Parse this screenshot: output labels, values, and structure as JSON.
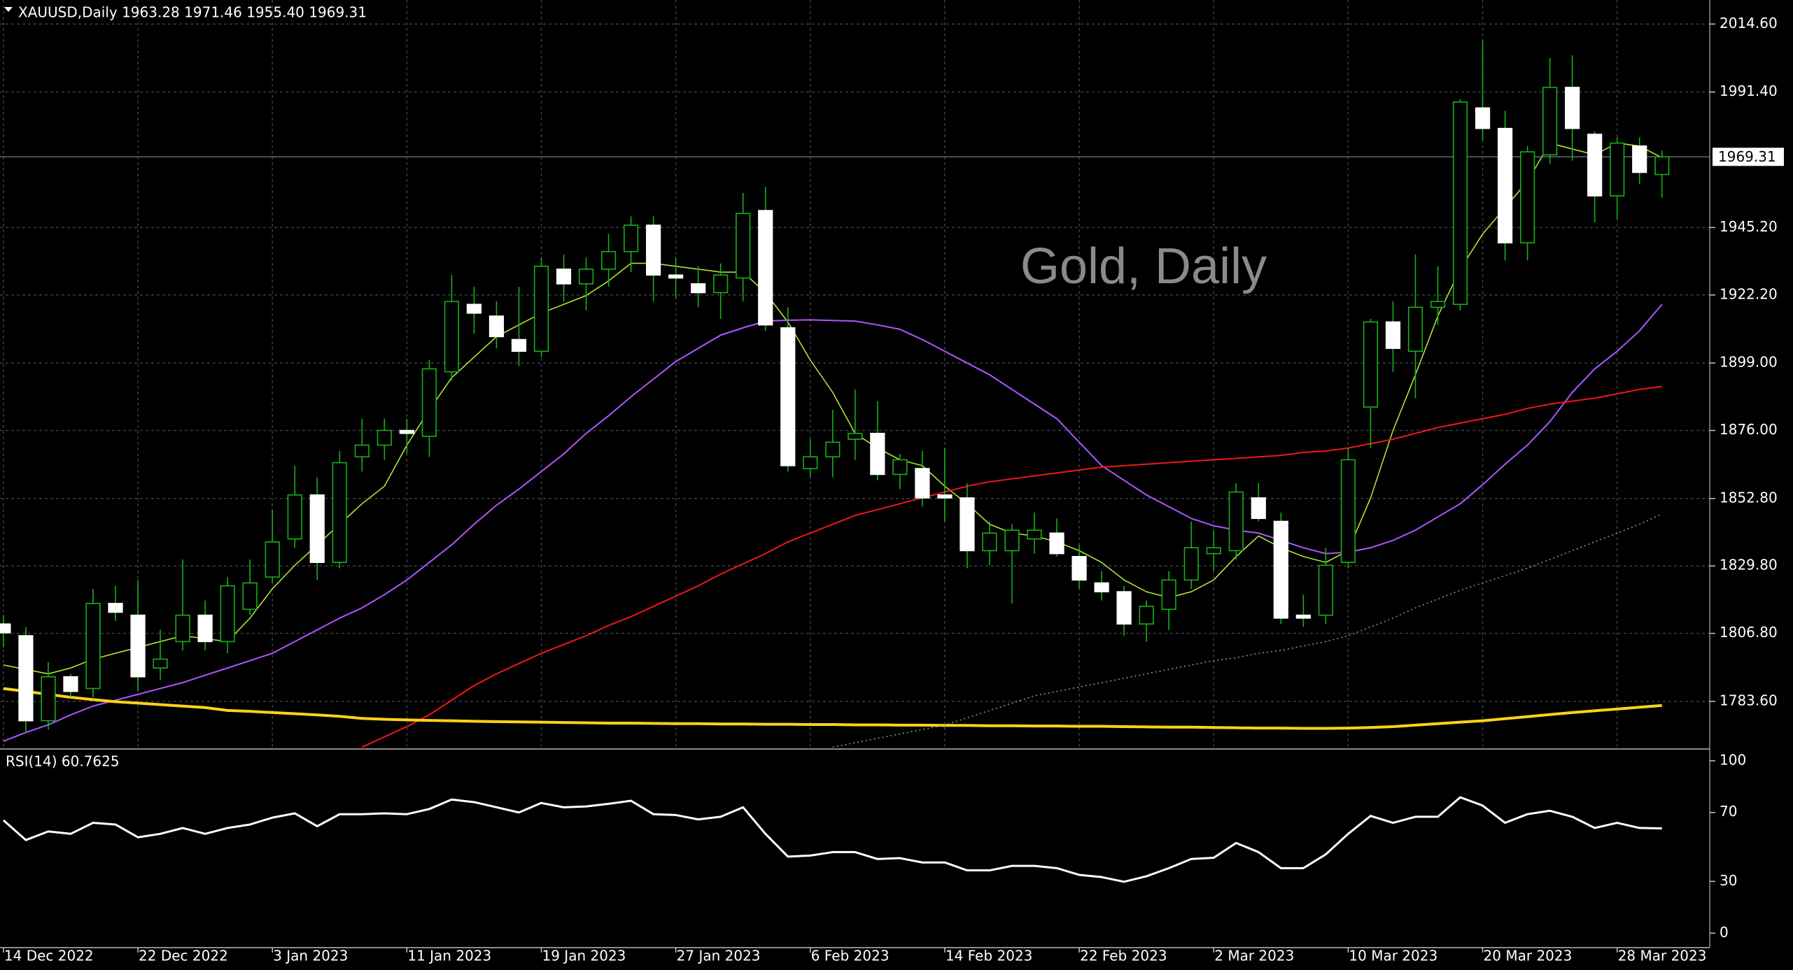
{
  "chart_data": [
    {
      "type": "candlestick",
      "title": "XAUUSD,Daily  1963.28 1971.46 1955.40 1969.31",
      "watermark": "Gold, Daily",
      "categories": [
        "14 Dec 2022",
        null,
        null,
        null,
        null,
        null,
        "22 Dec 2022",
        null,
        null,
        null,
        null,
        null,
        "3 Jan 2023",
        null,
        null,
        null,
        null,
        null,
        "11 Jan 2023",
        null,
        null,
        null,
        null,
        null,
        "19 Jan 2023",
        null,
        null,
        null,
        null,
        null,
        "27 Jan 2023",
        null,
        null,
        null,
        null,
        null,
        "6 Feb 2023",
        null,
        null,
        null,
        null,
        null,
        "14 Feb 2023",
        null,
        null,
        null,
        null,
        null,
        "22 Feb 2023",
        null,
        null,
        null,
        null,
        null,
        "2 Mar 2023",
        null,
        null,
        null,
        null,
        null,
        "10 Mar 2023",
        null,
        null,
        null,
        null,
        null,
        "20 Mar 2023",
        null,
        null,
        null,
        null,
        null,
        "28 Mar 2023",
        null,
        null
      ],
      "open": [
        1810,
        1806,
        1777,
        1792,
        1788,
        1817,
        1813,
        1795,
        1804,
        1813,
        1804,
        1815,
        1826,
        1839,
        1854,
        1831,
        1867,
        1871,
        1876,
        1874,
        1896,
        1919,
        1915,
        1907,
        1903,
        1931,
        1926,
        1931,
        1937,
        1946,
        1929,
        1926,
        1923,
        1928,
        1951,
        1911,
        1863,
        1867,
        1873,
        1875,
        1861,
        1863,
        1854,
        1853,
        1835,
        1835,
        1839,
        1841,
        1833,
        1824,
        1821,
        1810,
        1815,
        1825,
        1834,
        1835,
        1853,
        1845,
        1813,
        1813,
        1831,
        1884,
        1913,
        1903,
        1918,
        1919,
        1986,
        1979,
        1940,
        1970,
        1993,
        1977,
        1956,
        1973,
        1963.28
      ],
      "high": [
        1813,
        1809,
        1797,
        1793,
        1822,
        1823,
        1825,
        1808,
        1832,
        1818,
        1826,
        1832,
        1849,
        1864,
        1860,
        1869,
        1880,
        1880,
        1880,
        1900,
        1929,
        1925,
        1920,
        1925,
        1935,
        1936,
        1935,
        1943,
        1949,
        1949,
        1935,
        1932,
        1933,
        1957,
        1959,
        1918,
        1873,
        1883,
        1890,
        1886,
        1868,
        1869,
        1870,
        1858,
        1845,
        1844,
        1848,
        1846,
        1837,
        1828,
        1823,
        1818,
        1828,
        1845,
        1842,
        1858,
        1858,
        1848,
        1820,
        1836,
        1870,
        1914,
        1920,
        1936,
        1932,
        1989,
        2009,
        1985,
        1973,
        2003,
        2004,
        1978,
        1976,
        1976,
        1971.46
      ],
      "low": [
        1802,
        1773,
        1774,
        1785,
        1785,
        1811,
        1787,
        1791,
        1801,
        1801,
        1800,
        1813,
        1824,
        1836,
        1825,
        1829,
        1862,
        1866,
        1868,
        1867,
        1893,
        1909,
        1904,
        1898,
        1901,
        1920,
        1917,
        1925,
        1930,
        1920,
        1921,
        1918,
        1914,
        1920,
        1910,
        1862,
        1860,
        1860,
        1866,
        1859,
        1856,
        1850,
        1845,
        1829,
        1830,
        1817,
        1834,
        1833,
        1822,
        1818,
        1806,
        1804,
        1808,
        1822,
        1828,
        1832,
        1845,
        1810,
        1809,
        1810,
        1829,
        1870,
        1896,
        1887,
        1912,
        1917,
        1975,
        1934,
        1934,
        1967,
        1968,
        1947,
        1948,
        1960,
        1955.4
      ],
      "close": [
        1807,
        1777,
        1792,
        1787,
        1817,
        1814,
        1792,
        1798,
        1813,
        1804,
        1823,
        1824,
        1838,
        1854,
        1831,
        1865,
        1871,
        1876,
        1875,
        1897,
        1920,
        1916,
        1908,
        1903,
        1932,
        1926,
        1931,
        1937,
        1946,
        1929,
        1928,
        1923,
        1929,
        1950,
        1912,
        1864,
        1867,
        1872,
        1875,
        1861,
        1866,
        1853,
        1853,
        1835,
        1841,
        1842,
        1842,
        1834,
        1825,
        1821,
        1810,
        1816,
        1825,
        1836,
        1836,
        1855,
        1846,
        1812,
        1812,
        1830,
        1866,
        1913,
        1904,
        1918,
        1920,
        1988,
        1979,
        1940,
        1971,
        1993,
        1979,
        1956,
        1974,
        1964,
        1969.31
      ],
      "bull_color": "#000000",
      "bear_color": "#ffffff",
      "wick_color": "#19b019",
      "series": [
        {
          "color": "#b8f03c",
          "width": 1.5,
          "style": "solid",
          "values": [
            1796,
            1794.5,
            1793,
            1795,
            1798,
            1800,
            1802,
            1804,
            1806,
            1805,
            1804,
            1812,
            1822,
            1830,
            1837,
            1844,
            1851,
            1857,
            1871,
            1883,
            1894,
            1901,
            1908,
            1912,
            1916,
            1919,
            1922,
            1927,
            1933,
            1933,
            1932,
            1931,
            1930,
            1930,
            1923,
            1913,
            1900,
            1889,
            1875,
            1870,
            1866,
            1864,
            1857,
            1851,
            1844,
            1841,
            1840,
            1838,
            1835,
            1831,
            1825,
            1821,
            1819,
            1821,
            1825,
            1833,
            1840,
            1836,
            1833,
            1831,
            1835,
            1853,
            1876,
            1895,
            1915,
            1931,
            1943,
            1952,
            1961,
            1974,
            1972,
            1970,
            1974,
            1973,
            1969
          ]
        },
        {
          "color": "#b055ff",
          "width": 2,
          "style": "solid",
          "values": [
            1770,
            1773,
            1775.6,
            1779,
            1782,
            1784,
            1786,
            1788,
            1790,
            1792.5,
            1795,
            1797.5,
            1800,
            1804,
            1808,
            1812,
            1815.5,
            1820,
            1825,
            1831,
            1837,
            1844,
            1850.5,
            1856,
            1862,
            1868,
            1875,
            1881,
            1887.5,
            1893.5,
            1899.5,
            1904,
            1908.5,
            1911,
            1913.3,
            1913.6,
            1913.7,
            1913.5,
            1913.3,
            1912,
            1910.5,
            1907,
            1903,
            1899,
            1895,
            1890,
            1885,
            1880,
            1872,
            1864,
            1859,
            1854,
            1850,
            1846,
            1843.5,
            1842,
            1841,
            1838.5,
            1836,
            1834,
            1834.5,
            1836,
            1838.5,
            1842,
            1846.5,
            1851,
            1857.5,
            1864.5,
            1871,
            1879,
            1889,
            1897,
            1903,
            1910,
            1919
          ]
        },
        {
          "color": "#f01818",
          "width": 2,
          "style": "solid",
          "values": [
            null,
            null,
            null,
            null,
            null,
            null,
            null,
            null,
            null,
            null,
            null,
            null,
            null,
            null,
            null,
            null,
            1768,
            1771.5,
            1775,
            1779,
            1784,
            1789,
            1793,
            1796.5,
            1800,
            1803,
            1806,
            1809.5,
            1812.5,
            1816,
            1819.5,
            1823,
            1827,
            1830.5,
            1834,
            1838,
            1841,
            1844,
            1847,
            1849,
            1851,
            1853,
            1855,
            1857,
            1858.5,
            1859.5,
            1860.5,
            1861.5,
            1862.5,
            1863.5,
            1864,
            1864.5,
            1865,
            1865.5,
            1866,
            1866.5,
            1867,
            1867.5,
            1868.5,
            1869,
            1870,
            1871.5,
            1873,
            1875,
            1877,
            1878.5,
            1880,
            1881.5,
            1883.5,
            1885,
            1886,
            1887,
            1888.5,
            1890,
            1891
          ]
        },
        {
          "color": "#ffd21a",
          "width": 4,
          "style": "solid",
          "values": [
            1788,
            1787,
            1786,
            1785,
            1784.2,
            1783.5,
            1783,
            1782.5,
            1782,
            1781.5,
            1780.5,
            1780.2,
            1779.8,
            1779.4,
            1779,
            1778.5,
            1777.8,
            1777.5,
            1777.3,
            1777.1,
            1777,
            1776.8,
            1776.7,
            1776.6,
            1776.5,
            1776.4,
            1776.3,
            1776.2,
            1776.2,
            1776.1,
            1776,
            1776,
            1775.9,
            1775.9,
            1775.8,
            1775.8,
            1775.7,
            1775.7,
            1775.6,
            1775.6,
            1775.5,
            1775.5,
            1775.4,
            1775.4,
            1775.3,
            1775.3,
            1775.2,
            1775.2,
            1775.1,
            1775.1,
            1775,
            1774.9,
            1774.8,
            1774.8,
            1774.7,
            1774.6,
            1774.5,
            1774.5,
            1774.4,
            1774.4,
            1774.5,
            1774.7,
            1775,
            1775.5,
            1776,
            1776.5,
            1777,
            1777.7,
            1778.4,
            1779.1,
            1779.8,
            1780.4,
            1781,
            1781.6,
            1782.2
          ]
        },
        {
          "color": "#9a9a9a",
          "width": 1.5,
          "style": "dotted",
          "values": [
            null,
            null,
            null,
            null,
            null,
            null,
            null,
            null,
            null,
            null,
            null,
            null,
            null,
            null,
            null,
            null,
            null,
            null,
            null,
            null,
            null,
            null,
            null,
            null,
            null,
            null,
            null,
            null,
            null,
            null,
            null,
            null,
            null,
            null,
            null,
            null,
            null,
            1768,
            1769.5,
            1771,
            1772.5,
            1774,
            1775.5,
            1778,
            1780.5,
            1783,
            1785.5,
            1787,
            1788.5,
            1790,
            1791.5,
            1793,
            1794.5,
            1796,
            1797.5,
            1798.5,
            1800,
            1801,
            1802.5,
            1804,
            1806,
            1809,
            1812,
            1815.5,
            1818.5,
            1821.5,
            1824,
            1826.5,
            1829,
            1832,
            1835,
            1838,
            1841,
            1844,
            1847.5
          ]
        }
      ],
      "ylim": [
        1767.6,
        2022.8
      ],
      "yticks": [
        {
          "value": 2014.6,
          "label": "2014.60"
        },
        {
          "value": 1991.4,
          "label": "1991.40"
        },
        {
          "value": 1945.2,
          "label": "1945.20"
        },
        {
          "value": 1922.2,
          "label": "1922.20"
        },
        {
          "value": 1899,
          "label": "1899.00"
        },
        {
          "value": 1876,
          "label": "1876.00"
        },
        {
          "value": 1852.8,
          "label": "1852.80"
        },
        {
          "value": 1829.8,
          "label": "1829.80"
        },
        {
          "value": 1806.8,
          "label": "1806.80"
        },
        {
          "value": 1783.6,
          "label": "1783.60"
        }
      ],
      "grid": true
    },
    {
      "type": "line",
      "title": "RSI(14) 60.7625",
      "color": "#ffffff",
      "values": [
        65.5,
        54,
        59,
        57.6,
        64,
        63,
        55.6,
        57.6,
        61,
        57.6,
        61,
        63,
        67,
        69.5,
        62,
        69,
        69,
        69.5,
        69,
        72,
        77.5,
        76,
        73,
        70,
        75.5,
        73,
        73.5,
        75,
        76.8,
        69,
        68.5,
        66,
        67.5,
        73,
        57.6,
        44.4,
        45,
        47,
        47,
        43,
        43.5,
        41,
        41,
        36.4,
        36.4,
        39,
        39,
        37.7,
        33.8,
        32.5,
        29.8,
        33,
        37.7,
        43,
        43.7,
        52.3,
        47,
        37.7,
        37.7,
        45.7,
        57.6,
        68,
        64,
        67.5,
        67.5,
        78.8,
        74,
        64,
        69,
        71,
        67.5,
        61,
        64,
        61,
        60.76
      ],
      "ylim": [
        -8,
        106
      ],
      "yticks": [
        100,
        70,
        30,
        0
      ]
    }
  ]
}
